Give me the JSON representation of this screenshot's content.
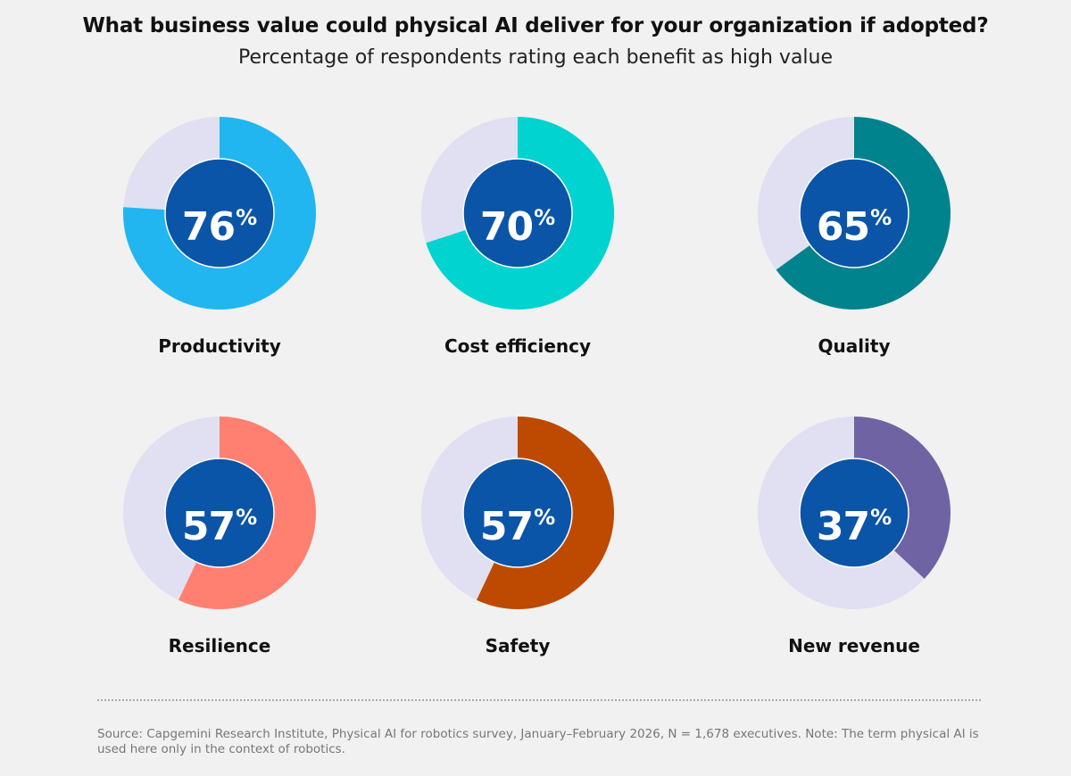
{
  "header": {
    "title": "What business value could physical AI deliver for your organization if adopted?",
    "subtitle": "Percentage of respondents rating each benefit as high value"
  },
  "chart_data": {
    "type": "pie",
    "variant": "donut",
    "value_suffix": "%",
    "track_color": "#e0e0f2",
    "center_color": "#0b55a8",
    "items": [
      {
        "label": "Productivity",
        "value": 76,
        "value_text": "76",
        "color": "#21b6f0"
      },
      {
        "label": "Cost efficiency",
        "value": 70,
        "value_text": "70",
        "color": "#00d3d0"
      },
      {
        "label": "Quality",
        "value": 65,
        "value_text": "65",
        "color": "#00838d"
      },
      {
        "label": "Resilience",
        "value": 57,
        "value_text": "57",
        "color": "#ff8070"
      },
      {
        "label": "Safety",
        "value": 57,
        "value_text": "57",
        "color": "#bd4a00"
      },
      {
        "label": "New revenue",
        "value": 37,
        "value_text": "37",
        "color": "#7063a3"
      }
    ]
  },
  "footer": {
    "source": "Source: Capgemini Research Institute, Physical AI for robotics survey, January–February 2026, N = 1,678 executives. Note: The term physical AI is used here only in the context of robotics."
  }
}
